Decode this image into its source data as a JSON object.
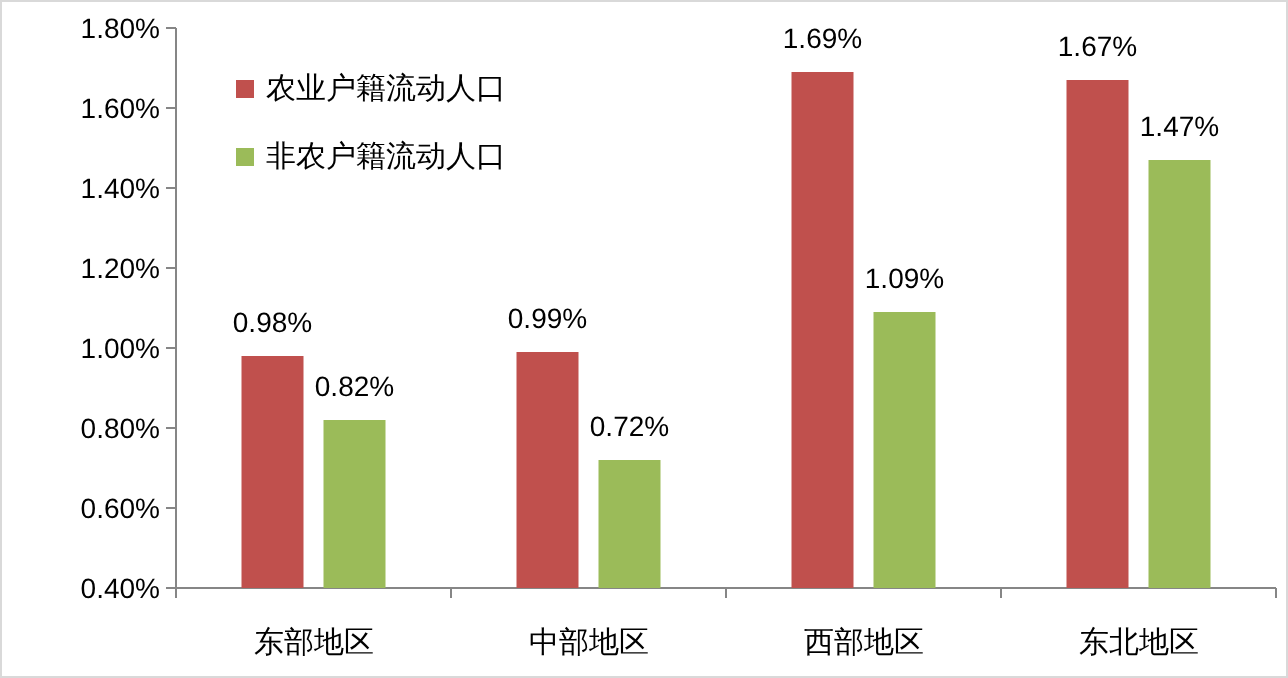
{
  "chart_data": {
    "type": "bar",
    "categories": [
      "东部地区",
      "中部地区",
      "西部地区",
      "东北地区"
    ],
    "series": [
      {
        "name": "农业户籍流动人口",
        "color": "#c0504d",
        "values": [
          0.98,
          0.99,
          1.69,
          1.67
        ],
        "value_labels": [
          "0.98%",
          "0.99%",
          "1.69%",
          "1.67%"
        ]
      },
      {
        "name": "非农户籍流动人口",
        "color": "#9bbb59",
        "values": [
          0.82,
          0.72,
          1.09,
          1.47
        ],
        "value_labels": [
          "0.82%",
          "0.72%",
          "1.09%",
          "1.47%"
        ]
      }
    ],
    "ylim": [
      0.4,
      1.8
    ],
    "yticks": [
      {
        "value": 0.4,
        "label": "0.40%"
      },
      {
        "value": 0.6,
        "label": "0.60%"
      },
      {
        "value": 0.8,
        "label": "0.80%"
      },
      {
        "value": 1.0,
        "label": "1.00%"
      },
      {
        "value": 1.2,
        "label": "1.20%"
      },
      {
        "value": 1.4,
        "label": "1.40%"
      },
      {
        "value": 1.6,
        "label": "1.60%"
      },
      {
        "value": 1.8,
        "label": "1.80%"
      }
    ],
    "legend": "top left",
    "grid": false
  }
}
